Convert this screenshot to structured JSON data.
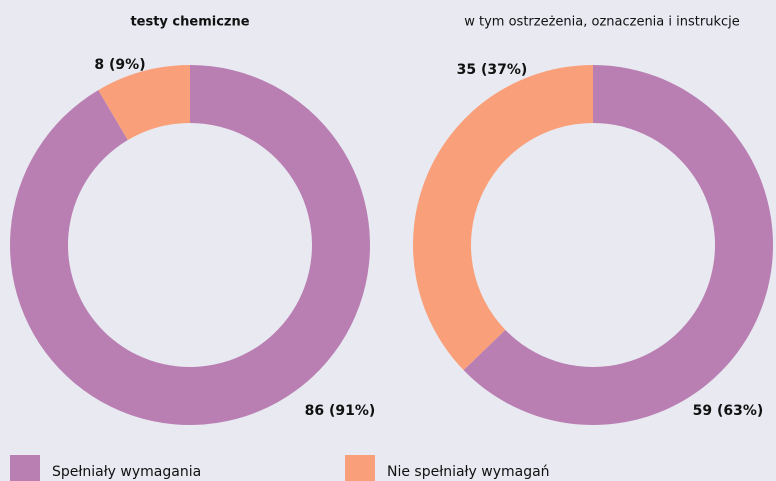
{
  "chart_data": [
    {
      "type": "pie",
      "title": "testy chemiczne",
      "categories": [
        "Spełniały wymagania",
        "Nie spełniały wymagań"
      ],
      "values": [
        86,
        8
      ],
      "value_labels": [
        "86 (91%)",
        "8 (9%)"
      ],
      "colors": [
        "#b97fb3",
        "#f9a07a"
      ]
    },
    {
      "type": "pie",
      "title": "w tym ostrzeżenia, oznaczenia i instrukcje",
      "categories": [
        "Spełniały wymagania",
        "Nie spełniały wymagań"
      ],
      "values": [
        59,
        35
      ],
      "value_labels": [
        "59 (63%)",
        "35 (37%)"
      ],
      "colors": [
        "#b97fb3",
        "#f9a07a"
      ]
    }
  ]
}
